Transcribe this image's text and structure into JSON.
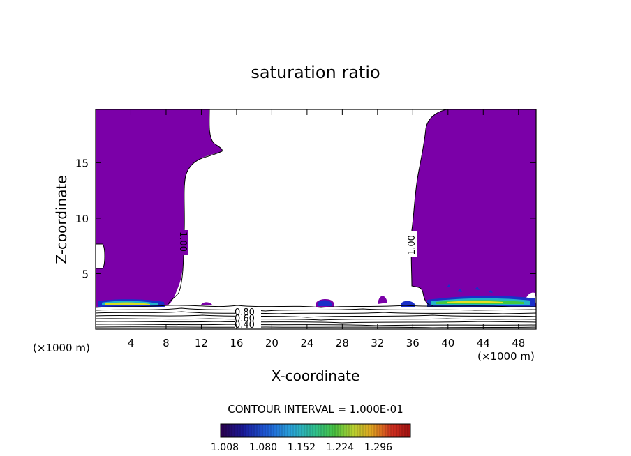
{
  "chart_data": {
    "type": "contour",
    "title": "saturation ratio",
    "xlabel": "X-coordinate",
    "ylabel": "Z-coordinate",
    "x_unit_left": "(×1000 m)",
    "x_unit_right": "(×1000 m)",
    "xlim": [
      0,
      50
    ],
    "ylim": [
      0,
      19.8
    ],
    "x_ticks": [
      "4",
      "8",
      "12",
      "16",
      "20",
      "24",
      "28",
      "32",
      "36",
      "40",
      "44",
      "48"
    ],
    "y_ticks": [
      "5",
      "10",
      "15"
    ],
    "contour_labels": [
      {
        "text": "1.00",
        "x": 9.8,
        "y": 8.6,
        "rotate": 90
      },
      {
        "text": "1.00",
        "x": 35.8,
        "y": 8.6,
        "rotate": -90
      },
      {
        "text": "0.80",
        "x": 17.5,
        "y": 1.6
      },
      {
        "text": "0.60",
        "x": 17.5,
        "y": 1.1
      },
      {
        "text": "0.40",
        "x": 17.5,
        "y": 0.4
      }
    ],
    "contour_interval": "CONTOUR INTERVAL = 1.000E-01",
    "colorbar": {
      "labels": [
        "1.008",
        "1.080",
        "1.152",
        "1.224",
        "1.296"
      ],
      "colors": [
        "#2a004a",
        "#1a1a9a",
        "#1e5fd8",
        "#2aa6d6",
        "#2fbf8a",
        "#48c040",
        "#b8d030",
        "#e0a020",
        "#d03020",
        "#a01010"
      ]
    },
    "regions": {
      "supersaturated_fill": "#7b00a8",
      "cloud_base_colors": [
        "#1a2fc8",
        "#22b4c8",
        "#40c840",
        "#e8e020"
      ]
    }
  }
}
